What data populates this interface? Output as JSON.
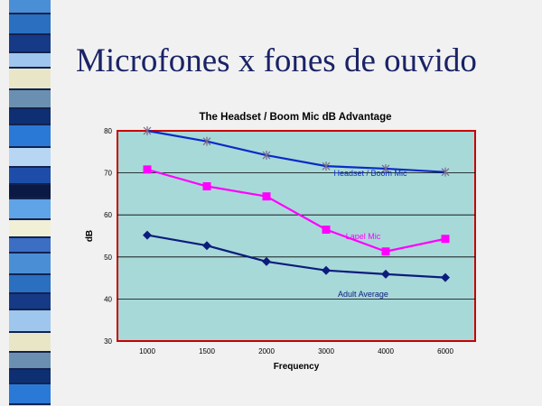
{
  "slide": {
    "title": "Microfones x fones de ouvido"
  },
  "chart_data": {
    "type": "line",
    "title": "The Headset / Boom Mic dB Advantage",
    "xlabel": "Frequency",
    "ylabel": "dB",
    "categories": [
      "1000",
      "1500",
      "2000",
      "3000",
      "4000",
      "6000"
    ],
    "ylim": [
      30,
      80
    ],
    "yticks": [
      "30",
      "40",
      "50",
      "60",
      "70",
      "80"
    ],
    "grid": true,
    "series": [
      {
        "name": "Headset / Boom Mic",
        "values": [
          80,
          77.5,
          74.2,
          71.6,
          71,
          70.2
        ],
        "color": "#0a2bc6",
        "marker": "star"
      },
      {
        "name": "Lapel Mic",
        "values": [
          70.8,
          66.8,
          64.4,
          56.5,
          51.3,
          54.3
        ],
        "color": "#ff00ff",
        "marker": "square"
      },
      {
        "name": "Adult Average",
        "values": [
          55.2,
          52.7,
          48.9,
          46.8,
          45.9,
          45.1
        ],
        "color": "#0b1d7c",
        "marker": "diamond"
      }
    ],
    "colors": {
      "plot_background": "#a8d9d9",
      "plot_border": "#c90000",
      "gridline": "#000000"
    }
  }
}
